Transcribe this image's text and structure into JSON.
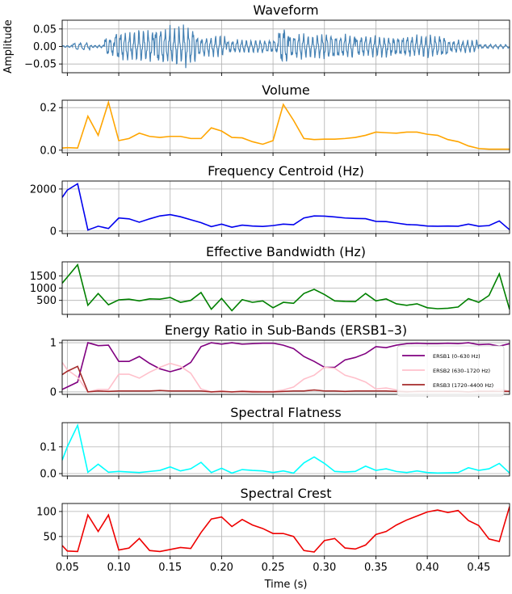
{
  "chart_data": [
    {
      "type": "line",
      "title": "Waveform",
      "ylabel": "Amplitude",
      "xlabel": "",
      "grid": true,
      "xlim": [
        0.045,
        0.48
      ],
      "ylim": [
        -0.075,
        0.075
      ],
      "yticks": [
        -0.05,
        0.0,
        0.05
      ],
      "ytick_labels": [
        "−0.05",
        "0.00",
        "0.05"
      ],
      "color": "#4682b4",
      "waveform_regions": [
        {
          "start": 0.045,
          "end": 0.055,
          "amp": 0.003,
          "period": 0.004
        },
        {
          "start": 0.055,
          "end": 0.072,
          "amp": 0.012,
          "period": 0.006
        },
        {
          "start": 0.072,
          "end": 0.086,
          "amp": 0.004,
          "period": 0.004
        },
        {
          "start": 0.086,
          "end": 0.096,
          "amp": 0.028,
          "period": 0.0045
        },
        {
          "start": 0.096,
          "end": 0.135,
          "amp": 0.045,
          "period": 0.0045
        },
        {
          "start": 0.135,
          "end": 0.175,
          "amp": 0.055,
          "period": 0.0045
        },
        {
          "start": 0.175,
          "end": 0.205,
          "amp": 0.03,
          "period": 0.0045
        },
        {
          "start": 0.205,
          "end": 0.255,
          "amp": 0.02,
          "period": 0.0045
        },
        {
          "start": 0.255,
          "end": 0.265,
          "amp": 0.055,
          "period": 0.0045
        },
        {
          "start": 0.265,
          "end": 0.33,
          "amp": 0.035,
          "period": 0.0045
        },
        {
          "start": 0.33,
          "end": 0.42,
          "amp": 0.03,
          "period": 0.0045
        },
        {
          "start": 0.42,
          "end": 0.45,
          "amp": 0.018,
          "period": 0.0045
        },
        {
          "start": 0.45,
          "end": 0.48,
          "amp": 0.006,
          "period": 0.005
        }
      ]
    },
    {
      "type": "line",
      "title": "Volume",
      "xlabel": "",
      "ylabel": "",
      "grid": true,
      "xlim": [
        0.045,
        0.48
      ],
      "ylim": [
        -0.012,
        0.235
      ],
      "yticks": [
        0.0,
        0.2
      ],
      "ytick_labels": [
        "0.0",
        "0.2"
      ],
      "color": "#ffa500",
      "x": [
        0.045,
        0.05,
        0.06,
        0.07,
        0.08,
        0.09,
        0.1,
        0.11,
        0.12,
        0.13,
        0.14,
        0.15,
        0.16,
        0.17,
        0.18,
        0.19,
        0.2,
        0.21,
        0.22,
        0.23,
        0.24,
        0.25,
        0.26,
        0.27,
        0.28,
        0.29,
        0.3,
        0.31,
        0.32,
        0.33,
        0.34,
        0.35,
        0.36,
        0.37,
        0.38,
        0.39,
        0.4,
        0.41,
        0.42,
        0.43,
        0.44,
        0.45,
        0.46,
        0.47,
        0.48
      ],
      "values": [
        0.01,
        0.012,
        0.01,
        0.16,
        0.07,
        0.225,
        0.045,
        0.055,
        0.08,
        0.065,
        0.06,
        0.065,
        0.065,
        0.055,
        0.055,
        0.105,
        0.09,
        0.06,
        0.058,
        0.04,
        0.028,
        0.045,
        0.215,
        0.14,
        0.055,
        0.05,
        0.052,
        0.052,
        0.055,
        0.06,
        0.07,
        0.085,
        0.082,
        0.08,
        0.085,
        0.085,
        0.075,
        0.07,
        0.05,
        0.04,
        0.02,
        0.008,
        0.005,
        0.005,
        0.005
      ]
    },
    {
      "type": "line",
      "title": "Frequency Centroid (Hz)",
      "xlabel": "",
      "ylabel": "",
      "grid": true,
      "xlim": [
        0.045,
        0.48
      ],
      "ylim": [
        -120,
        2380
      ],
      "yticks": [
        0,
        2000
      ],
      "ytick_labels": [
        "0",
        "2000"
      ],
      "color": "#0000ee",
      "x": [
        0.045,
        0.05,
        0.06,
        0.07,
        0.08,
        0.09,
        0.1,
        0.11,
        0.12,
        0.13,
        0.14,
        0.15,
        0.16,
        0.17,
        0.18,
        0.19,
        0.2,
        0.21,
        0.22,
        0.23,
        0.24,
        0.25,
        0.26,
        0.27,
        0.28,
        0.29,
        0.3,
        0.31,
        0.32,
        0.33,
        0.34,
        0.35,
        0.36,
        0.37,
        0.38,
        0.39,
        0.4,
        0.41,
        0.42,
        0.43,
        0.44,
        0.45,
        0.46,
        0.47,
        0.48
      ],
      "values": [
        1600,
        1950,
        2250,
        50,
        230,
        120,
        620,
        580,
        420,
        580,
        720,
        780,
        680,
        540,
        400,
        210,
        330,
        180,
        280,
        240,
        220,
        260,
        330,
        300,
        620,
        720,
        710,
        670,
        620,
        600,
        590,
        460,
        450,
        380,
        310,
        290,
        240,
        230,
        240,
        230,
        330,
        230,
        260,
        480,
        60
      ]
    },
    {
      "type": "line",
      "title": "Effective Bandwidth (Hz)",
      "xlabel": "",
      "ylabel": "",
      "grid": true,
      "xlim": [
        0.045,
        0.48
      ],
      "ylim": [
        -70,
        2070
      ],
      "yticks": [
        500,
        1000,
        1500
      ],
      "ytick_labels": [
        "500",
        "1000",
        "1500"
      ],
      "color": "#008000",
      "x": [
        0.045,
        0.05,
        0.06,
        0.07,
        0.08,
        0.09,
        0.1,
        0.11,
        0.12,
        0.13,
        0.14,
        0.15,
        0.16,
        0.17,
        0.18,
        0.19,
        0.2,
        0.21,
        0.22,
        0.23,
        0.24,
        0.25,
        0.26,
        0.27,
        0.28,
        0.29,
        0.3,
        0.31,
        0.32,
        0.33,
        0.34,
        0.35,
        0.36,
        0.37,
        0.38,
        0.39,
        0.4,
        0.41,
        0.42,
        0.43,
        0.44,
        0.45,
        0.46,
        0.47,
        0.48
      ],
      "values": [
        1200,
        1450,
        1950,
        300,
        780,
        320,
        520,
        550,
        480,
        560,
        550,
        620,
        420,
        500,
        820,
        140,
        580,
        80,
        530,
        420,
        480,
        200,
        420,
        380,
        780,
        950,
        740,
        480,
        460,
        450,
        780,
        480,
        560,
        360,
        300,
        360,
        200,
        160,
        180,
        230,
        570,
        420,
        700,
        1580,
        130
      ]
    },
    {
      "type": "line",
      "title": "Energy Ratio in Sub-Bands (ERSB1–3)",
      "xlabel": "",
      "ylabel": "",
      "grid": true,
      "xlim": [
        0.045,
        0.48
      ],
      "ylim": [
        -0.05,
        1.05
      ],
      "yticks": [
        0,
        1
      ],
      "ytick_labels": [
        "0",
        "1"
      ],
      "legend": "right",
      "x": [
        0.045,
        0.05,
        0.06,
        0.07,
        0.08,
        0.09,
        0.1,
        0.11,
        0.12,
        0.13,
        0.14,
        0.15,
        0.16,
        0.17,
        0.18,
        0.19,
        0.2,
        0.21,
        0.22,
        0.23,
        0.24,
        0.25,
        0.26,
        0.27,
        0.28,
        0.29,
        0.3,
        0.31,
        0.32,
        0.33,
        0.34,
        0.35,
        0.36,
        0.37,
        0.38,
        0.39,
        0.4,
        0.41,
        0.42,
        0.43,
        0.44,
        0.45,
        0.46,
        0.47,
        0.48
      ],
      "series": [
        {
          "name": "ERSB1 (0–630 Hz)",
          "color": "#800080",
          "values": [
            0.05,
            0.1,
            0.2,
            1.0,
            0.94,
            0.95,
            0.62,
            0.62,
            0.72,
            0.58,
            0.47,
            0.41,
            0.47,
            0.6,
            0.92,
            1.0,
            0.97,
            1.0,
            0.97,
            0.98,
            0.99,
            0.99,
            0.95,
            0.88,
            0.72,
            0.62,
            0.5,
            0.5,
            0.65,
            0.7,
            0.78,
            0.92,
            0.9,
            0.95,
            0.98,
            0.99,
            0.98,
            0.98,
            0.99,
            0.98,
            1.0,
            0.96,
            0.97,
            0.93,
            0.98
          ]
        },
        {
          "name": "ERSB2 (630–1720 Hz)",
          "color": "#ffc0cb",
          "values": [
            0.6,
            0.45,
            0.3,
            0.0,
            0.05,
            0.05,
            0.36,
            0.36,
            0.28,
            0.4,
            0.5,
            0.58,
            0.52,
            0.38,
            0.06,
            0.0,
            0.02,
            0.0,
            0.02,
            0.02,
            0.01,
            0.01,
            0.04,
            0.1,
            0.26,
            0.34,
            0.5,
            0.48,
            0.34,
            0.28,
            0.2,
            0.06,
            0.08,
            0.04,
            0.02,
            0.0,
            0.01,
            0.01,
            0.0,
            0.01,
            0.0,
            0.03,
            0.02,
            0.06,
            0.01
          ]
        },
        {
          "name": "ERSB3 (1720–4400 Hz)",
          "color": "#a52a2a",
          "values": [
            0.35,
            0.42,
            0.52,
            0.0,
            0.02,
            0.01,
            0.02,
            0.02,
            0.02,
            0.02,
            0.03,
            0.02,
            0.02,
            0.02,
            0.02,
            0.0,
            0.01,
            0.0,
            0.01,
            0.0,
            0.0,
            0.0,
            0.01,
            0.02,
            0.02,
            0.04,
            0.02,
            0.02,
            0.01,
            0.02,
            0.02,
            0.02,
            0.02,
            0.01,
            0.0,
            0.01,
            0.01,
            0.01,
            0.01,
            0.01,
            0.0,
            0.01,
            0.01,
            0.01,
            0.01
          ]
        }
      ]
    },
    {
      "type": "line",
      "title": "Spectral Flatness",
      "xlabel": "",
      "ylabel": "",
      "grid": true,
      "xlim": [
        0.045,
        0.48
      ],
      "ylim": [
        -0.009,
        0.19
      ],
      "yticks": [
        0.0,
        0.1
      ],
      "ytick_labels": [
        "0.0",
        "0.1"
      ],
      "color": "#00ffff",
      "x": [
        0.045,
        0.05,
        0.06,
        0.07,
        0.08,
        0.09,
        0.1,
        0.11,
        0.12,
        0.13,
        0.14,
        0.15,
        0.16,
        0.17,
        0.18,
        0.19,
        0.2,
        0.21,
        0.22,
        0.23,
        0.24,
        0.25,
        0.26,
        0.27,
        0.28,
        0.29,
        0.3,
        0.31,
        0.32,
        0.33,
        0.34,
        0.35,
        0.36,
        0.37,
        0.38,
        0.39,
        0.4,
        0.41,
        0.42,
        0.43,
        0.44,
        0.45,
        0.46,
        0.47,
        0.48
      ],
      "values": [
        0.05,
        0.1,
        0.18,
        0.005,
        0.035,
        0.005,
        0.008,
        0.006,
        0.004,
        0.008,
        0.012,
        0.025,
        0.01,
        0.018,
        0.042,
        0.004,
        0.02,
        0.002,
        0.015,
        0.012,
        0.01,
        0.004,
        0.01,
        0.002,
        0.04,
        0.062,
        0.038,
        0.008,
        0.006,
        0.008,
        0.028,
        0.012,
        0.018,
        0.008,
        0.004,
        0.01,
        0.004,
        0.002,
        0.003,
        0.004,
        0.022,
        0.012,
        0.018,
        0.038,
        0.002
      ]
    },
    {
      "type": "line",
      "title": "Spectral Crest",
      "xlabel": "Time (s)",
      "ylabel": "",
      "grid": true,
      "xlim": [
        0.045,
        0.48
      ],
      "ylim": [
        11,
        116
      ],
      "yticks": [
        50,
        100
      ],
      "ytick_labels": [
        "50",
        "100"
      ],
      "color": "#ee0000",
      "xticks": [
        0.05,
        0.1,
        0.15,
        0.2,
        0.25,
        0.3,
        0.35,
        0.4,
        0.45
      ],
      "xtick_labels": [
        "0.05",
        "0.10",
        "0.15",
        "0.20",
        "0.25",
        "0.30",
        "0.35",
        "0.40",
        "0.45"
      ],
      "x": [
        0.045,
        0.05,
        0.06,
        0.07,
        0.08,
        0.09,
        0.1,
        0.11,
        0.12,
        0.13,
        0.14,
        0.15,
        0.16,
        0.17,
        0.18,
        0.19,
        0.2,
        0.21,
        0.22,
        0.23,
        0.24,
        0.25,
        0.26,
        0.27,
        0.28,
        0.29,
        0.3,
        0.31,
        0.32,
        0.33,
        0.34,
        0.35,
        0.36,
        0.37,
        0.38,
        0.39,
        0.4,
        0.41,
        0.42,
        0.43,
        0.44,
        0.45,
        0.46,
        0.47,
        0.48
      ],
      "values": [
        32,
        21,
        20,
        93,
        60,
        93,
        23,
        27,
        46,
        22,
        20,
        24,
        28,
        26,
        58,
        85,
        89,
        70,
        84,
        73,
        66,
        56,
        56,
        50,
        22,
        19,
        42,
        46,
        27,
        25,
        33,
        54,
        60,
        73,
        83,
        91,
        99,
        103,
        98,
        102,
        82,
        72,
        45,
        40,
        110
      ]
    }
  ]
}
